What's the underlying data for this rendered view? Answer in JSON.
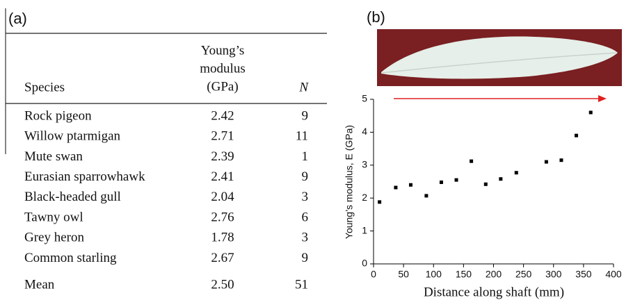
{
  "panel_a": {
    "label": "(a)",
    "table": {
      "columns": [
        "Species",
        [
          "Young’s",
          "modulus",
          "(GPa)"
        ],
        "N"
      ],
      "rows": [
        [
          "Rock pigeon",
          "2.42",
          "9"
        ],
        [
          "Willow ptarmigan",
          "2.71",
          "11"
        ],
        [
          "Mute swan",
          "2.39",
          "1"
        ],
        [
          "Eurasian sparrowhawk",
          "2.41",
          "9"
        ],
        [
          "Black-headed gull",
          "2.04",
          "3"
        ],
        [
          "Tawny owl",
          "2.76",
          "6"
        ],
        [
          "Grey heron",
          "1.78",
          "3"
        ],
        [
          "Common starling",
          "2.67",
          "9"
        ]
      ],
      "mean": [
        "Mean",
        "2.50",
        "51"
      ]
    }
  },
  "chart_data": {
    "type": "scatter",
    "label": "(b)",
    "x_label": "Distance along shaft (mm)",
    "y_label": "Young’s modulus, E (GPa)",
    "x": [
      10,
      37,
      62,
      88,
      113,
      138,
      163,
      187,
      212,
      238,
      288,
      313,
      338,
      362
    ],
    "values": [
      1.88,
      2.32,
      2.4,
      2.07,
      2.48,
      2.55,
      3.12,
      2.42,
      2.58,
      2.77,
      3.1,
      3.15,
      3.9,
      4.6
    ],
    "color": "#000000",
    "xlim": [
      0,
      400
    ],
    "xticks": [
      0,
      50,
      100,
      150,
      200,
      250,
      300,
      350,
      400
    ],
    "ylim": [
      0,
      5
    ],
    "yticks": [
      0,
      1,
      2,
      3,
      4,
      5
    ]
  }
}
